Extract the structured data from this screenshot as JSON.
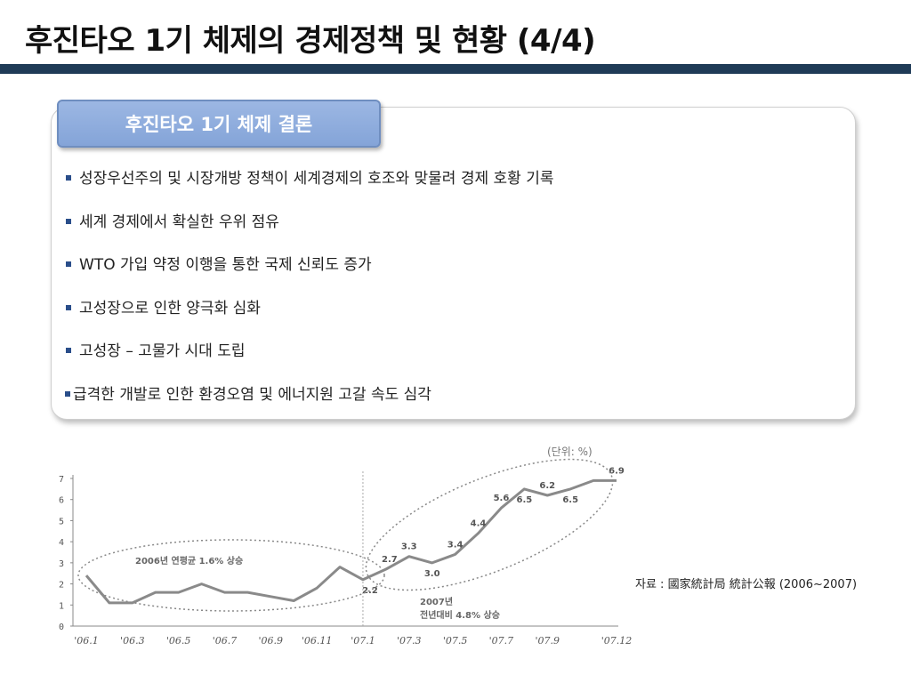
{
  "slide": {
    "title": "후진타오 1기 체제의 경제정책 및 현황 (4/4)",
    "accent_color": "#1f3b57"
  },
  "card": {
    "tab_label": "후진타오 1기 체제 결론",
    "bullets": [
      "성장우선주의 및 시장개방 정책이 세계경제의 호조와 맞물려 경제 호황 기록",
      "세계 경제에서 확실한 우위 점유",
      "WTO 가입 약정 이행을 통한 국제 신뢰도 증가",
      "고성장으로 인한 양극화 심화",
      "고성장 – 고물가 시대 도립",
      "급격한 개발로 인한 환경오염 및 에너지원 고갈 속도 심각"
    ]
  },
  "source": "자료 : 國家統計局  統計公報 (2006~2007)",
  "chart_data": {
    "type": "line",
    "unit_label": "(단위:  %)",
    "x": [
      "'06.1",
      "'06.2",
      "'06.3",
      "'06.4",
      "'06.5",
      "'06.6",
      "'06.7",
      "'06.8",
      "'06.9",
      "'06.10",
      "'06.11",
      "'06.12",
      "'07.1",
      "'07.2",
      "'07.3",
      "'07.4",
      "'07.5",
      "'07.6",
      "'07.7",
      "'07.8",
      "'07.9",
      "'07.10",
      "'07.11",
      "'07.12"
    ],
    "x_tick_labels": [
      "'06.1",
      "'06.3",
      "'06.5",
      "'06.7",
      "'06.9",
      "'06.11",
      "'07.1",
      "'07.3",
      "'07.5",
      "'07.7",
      "'07.9",
      "'07.12"
    ],
    "y_ticks": [
      0,
      1,
      2,
      3,
      4,
      5,
      6,
      7
    ],
    "ylim": [
      0,
      7
    ],
    "series": [
      {
        "values": [
          2.4,
          1.1,
          1.1,
          1.6,
          1.6,
          2.0,
          1.6,
          1.6,
          1.4,
          1.2,
          1.8,
          2.8,
          2.2,
          2.7,
          3.3,
          3.0,
          3.4,
          4.4,
          5.6,
          6.5,
          6.2,
          6.5,
          6.9,
          6.9
        ]
      }
    ],
    "data_labels": [
      {
        "x": "'07.1",
        "label": "2.2"
      },
      {
        "x": "'07.2",
        "label": "2.7"
      },
      {
        "x": "'07.3",
        "label": "3.3"
      },
      {
        "x": "'07.4",
        "label": "3.0"
      },
      {
        "x": "'07.5",
        "label": "3.4"
      },
      {
        "x": "'07.6",
        "label": "4.4"
      },
      {
        "x": "'07.7",
        "label": "5.6"
      },
      {
        "x": "'07.8",
        "label": "6.5"
      },
      {
        "x": "'07.9",
        "label": "6.2"
      },
      {
        "x": "'07.10",
        "label": "6.5"
      },
      {
        "x": "'07.12",
        "label": "6.9"
      }
    ],
    "annotations": {
      "y2006": "2006년 연평균 1.6% 상승",
      "y2007_line1": "2007년",
      "y2007_line2": "전년대비 4.8% 상승"
    },
    "line_color": "#8a8a8a",
    "grid": false
  }
}
